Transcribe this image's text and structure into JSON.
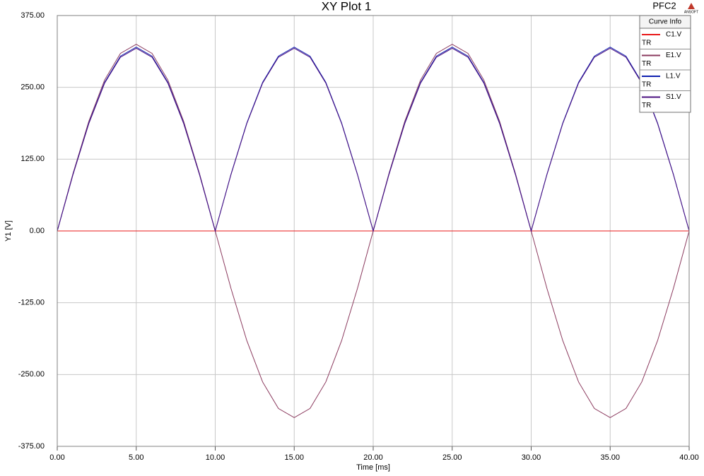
{
  "chart_data": {
    "type": "line",
    "title": "XY Plot 1",
    "project": "PFC2",
    "logo": "ANSOFT",
    "xlabel": "Time [ms]",
    "ylabel": "Y1 [V]",
    "legend_title": "Curve Info",
    "legend_position": "upper right",
    "grid": true,
    "x": [
      0,
      1,
      2,
      3,
      4,
      5,
      6,
      7,
      8,
      9,
      10,
      11,
      12,
      13,
      14,
      15,
      16,
      17,
      18,
      19,
      20,
      21,
      22,
      23,
      24,
      25,
      26,
      27,
      28,
      29,
      30,
      31,
      32,
      33,
      34,
      35,
      36,
      37,
      38,
      39,
      40
    ],
    "series": [
      {
        "name": "C1.V",
        "solution": "TR",
        "color": "#e8191a",
        "values": [
          0,
          0,
          0,
          0,
          0,
          0,
          0,
          0,
          0,
          0,
          0,
          0,
          0,
          0,
          0,
          0,
          0,
          0,
          0,
          0,
          0,
          0,
          0,
          0,
          0,
          0,
          0,
          0,
          0,
          0,
          0,
          0,
          0,
          0,
          0,
          0,
          0,
          0,
          0,
          0,
          0
        ]
      },
      {
        "name": "E1.V",
        "solution": "TR",
        "color": "#8b3a5e",
        "values": [
          0,
          100.4,
          191,
          262.9,
          309.1,
          325,
          309.1,
          262.9,
          191,
          100.4,
          0,
          -100.4,
          -191,
          -262.9,
          -309.1,
          -325,
          -309.1,
          -262.9,
          -191,
          -100.4,
          0,
          100.4,
          191,
          262.9,
          309.1,
          325,
          309.1,
          262.9,
          191,
          100.4,
          0,
          -100.4,
          -191,
          -262.9,
          -309.1,
          -325,
          -309.1,
          -262.9,
          -191,
          -100.4,
          0
        ]
      },
      {
        "name": "L1.V",
        "solution": "TR",
        "color": "#1020b0",
        "values": [
          0,
          98.9,
          188.1,
          258.9,
          304.3,
          320,
          304.3,
          258.9,
          188.1,
          98.9,
          0,
          98.9,
          188.1,
          258.9,
          304.3,
          320,
          304.3,
          258.9,
          188.1,
          98.9,
          0,
          98.9,
          188.1,
          258.9,
          304.3,
          320,
          304.3,
          258.9,
          188.1,
          98.9,
          0,
          98.9,
          188.1,
          258.9,
          304.3,
          320,
          304.3,
          258.9,
          188.1,
          98.9,
          0
        ]
      },
      {
        "name": "S1.V",
        "solution": "TR",
        "color": "#4b1080",
        "values": [
          0,
          98.3,
          186.9,
          257.3,
          302.4,
          318,
          302.4,
          257.3,
          186.9,
          98.3,
          0,
          98.3,
          186.9,
          257.3,
          302.4,
          318,
          302.4,
          257.3,
          186.9,
          98.3,
          0,
          98.3,
          186.9,
          257.3,
          302.4,
          318,
          302.4,
          257.3,
          186.9,
          98.3,
          0,
          98.3,
          186.9,
          257.3,
          302.4,
          318,
          302.4,
          257.3,
          186.9,
          98.3,
          0
        ]
      }
    ],
    "xlim": [
      0,
      40
    ],
    "xticks": [
      {
        "value": 0,
        "label": "0.00"
      },
      {
        "value": 5,
        "label": "5.00"
      },
      {
        "value": 10,
        "label": "10.00"
      },
      {
        "value": 15,
        "label": "15.00"
      },
      {
        "value": 20,
        "label": "20.00"
      },
      {
        "value": 25,
        "label": "25.00"
      },
      {
        "value": 30,
        "label": "30.00"
      },
      {
        "value": 35,
        "label": "35.00"
      },
      {
        "value": 40,
        "label": "40.00"
      }
    ],
    "ylim": [
      -375,
      375
    ],
    "yticks": [
      {
        "value": -375,
        "label": "-375.00"
      },
      {
        "value": -250,
        "label": "-250.00"
      },
      {
        "value": -125,
        "label": "-125.00"
      },
      {
        "value": 0,
        "label": "0.00"
      },
      {
        "value": 125,
        "label": "125.00"
      },
      {
        "value": 250,
        "label": "250.00"
      },
      {
        "value": 375,
        "label": "375.00"
      }
    ]
  }
}
